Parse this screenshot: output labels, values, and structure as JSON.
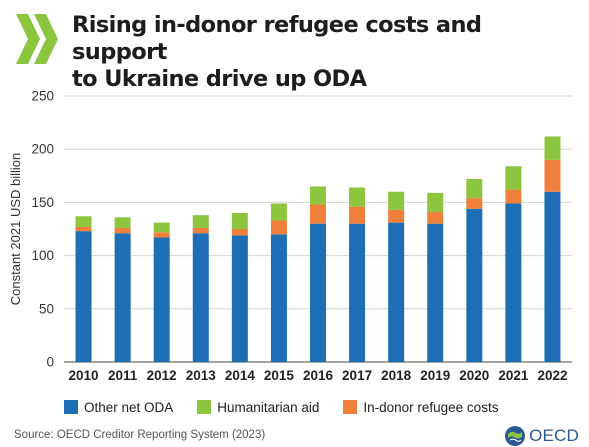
{
  "header": {
    "title_line1": "Rising in-donor refugee costs and support",
    "title_line2": "to Ukraine drive up ODA"
  },
  "chart_data": {
    "type": "bar",
    "stacked": true,
    "categories": [
      "2010",
      "2011",
      "2012",
      "2013",
      "2014",
      "2015",
      "2016",
      "2017",
      "2018",
      "2019",
      "2020",
      "2021",
      "2022\n(prel.)"
    ],
    "series": [
      {
        "name": "Other net ODA",
        "color": "#1f6eb5",
        "values": [
          123,
          121,
          117,
          121,
          119,
          120,
          130,
          130,
          131,
          130,
          144,
          149,
          160
        ]
      },
      {
        "name": "In-donor refugee costs",
        "color": "#f07f3c",
        "values": [
          4,
          5,
          5,
          5,
          6,
          13,
          18,
          16,
          12,
          11,
          10,
          13,
          30
        ]
      },
      {
        "name": "Humanitarian aid",
        "color": "#8cc63f",
        "values": [
          10,
          10,
          9,
          12,
          15,
          16,
          17,
          18,
          17,
          18,
          18,
          22,
          22
        ]
      }
    ],
    "ylabel": "Constant 2021 USD billion",
    "xlabel": "",
    "ylim": [
      0,
      250
    ],
    "yticks": [
      0,
      50,
      100,
      150,
      200,
      250
    ],
    "grid": true,
    "legend_position": "bottom"
  },
  "legend": [
    {
      "label": "Other net ODA",
      "color": "#1f6eb5"
    },
    {
      "label": "Humanitarian aid",
      "color": "#8cc63f"
    },
    {
      "label": "In-donor refugee costs",
      "color": "#f07f3c"
    }
  ],
  "footer": {
    "source": "Source: OECD Creditor Reporting System (2023)",
    "logo_text": "OECD"
  }
}
